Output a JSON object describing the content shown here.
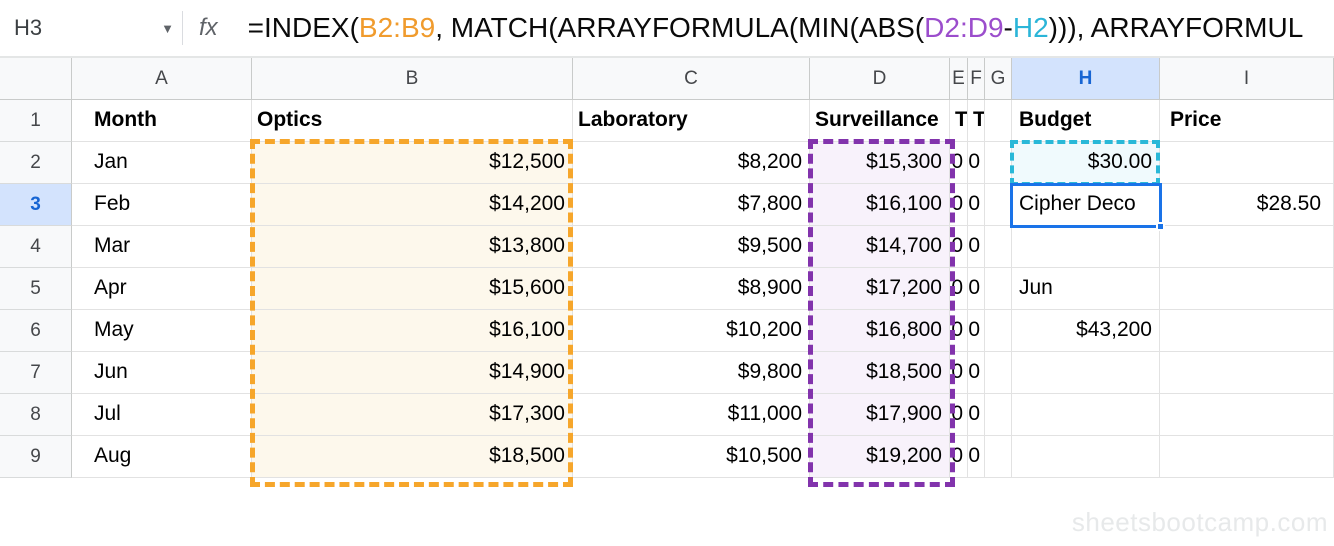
{
  "formula_bar": {
    "name_box": "H3",
    "fx_label": "fx",
    "formula_parts": [
      {
        "text": "=INDEX(",
        "color": "#0a0a0a"
      },
      {
        "text": "B2:B9",
        "color": "#f09b2d"
      },
      {
        "text": ", MATCH(ARRAYFORMULA(MIN(ABS(",
        "color": "#0a0a0a"
      },
      {
        "text": "D2:D9",
        "color": "#9b4dcc"
      },
      {
        "text": "-",
        "color": "#0a0a0a"
      },
      {
        "text": "H2",
        "color": "#2bb5d8"
      },
      {
        "text": ")))",
        "color": "#0a0a0a"
      },
      {
        "text": ", ARRAYFORMUL",
        "color": "#0a0a0a"
      }
    ]
  },
  "sheet": {
    "column_headers": [
      "A",
      "B",
      "C",
      "D",
      "E",
      "F",
      "G",
      "H",
      "I"
    ],
    "selected_column": "H",
    "selected_row": "3",
    "selected_cell": "H3",
    "rows": [
      {
        "n": "1",
        "A": "Month",
        "B": "Optics",
        "C": "Laboratory",
        "D": "Surveillance",
        "E": "T",
        "F": "T",
        "G": "",
        "H": "Budget",
        "I": "Price"
      },
      {
        "n": "2",
        "A": "Jan",
        "B": "$12,500",
        "C": "$8,200",
        "D": "$15,300",
        "E": "0",
        "F": "0",
        "G": "",
        "H": "$30.00",
        "I": ""
      },
      {
        "n": "3",
        "A": "Feb",
        "B": "$14,200",
        "C": "$7,800",
        "D": "$16,100",
        "E": "0",
        "F": "0",
        "G": "",
        "H": "Cipher Deco",
        "I": "$28.50"
      },
      {
        "n": "4",
        "A": "Mar",
        "B": "$13,800",
        "C": "$9,500",
        "D": "$14,700",
        "E": "0",
        "F": "0",
        "G": "",
        "H": "",
        "I": ""
      },
      {
        "n": "5",
        "A": "Apr",
        "B": "$15,600",
        "C": "$8,900",
        "D": "$17,200",
        "E": "0",
        "F": "0",
        "G": "",
        "H": "Jun",
        "I": ""
      },
      {
        "n": "6",
        "A": "May",
        "B": "$16,100",
        "C": "$10,200",
        "D": "$16,800",
        "E": "0",
        "F": "0",
        "G": "",
        "H": "$43,200",
        "I": ""
      },
      {
        "n": "7",
        "A": "Jun",
        "B": "$14,900",
        "C": "$9,800",
        "D": "$18,500",
        "E": "0",
        "F": "0",
        "G": "",
        "H": "",
        "I": ""
      },
      {
        "n": "8",
        "A": "Jul",
        "B": "$17,300",
        "C": "$11,000",
        "D": "$17,900",
        "E": "0",
        "F": "0",
        "G": "",
        "H": "",
        "I": ""
      },
      {
        "n": "9",
        "A": "Aug",
        "B": "$18,500",
        "C": "$10,500",
        "D": "$19,200",
        "E": "0",
        "F": "0",
        "G": "",
        "H": "",
        "I": ""
      }
    ],
    "highlights": {
      "orange_range": {
        "ref": "B2:B9",
        "border_color": "#f6a62b",
        "fill_color": "#fdf8ec"
      },
      "purple_range": {
        "ref": "D2:D9",
        "border_color": "#8233ac",
        "fill_color": "#f8f2fb"
      },
      "cyan_cell": {
        "ref": "H2",
        "border_color": "#29b8d8",
        "fill_color": "#f0fafd"
      },
      "selection": {
        "ref": "H3",
        "border_color": "#1a73e8"
      }
    }
  },
  "watermark": "sheetsbootcamp.com"
}
